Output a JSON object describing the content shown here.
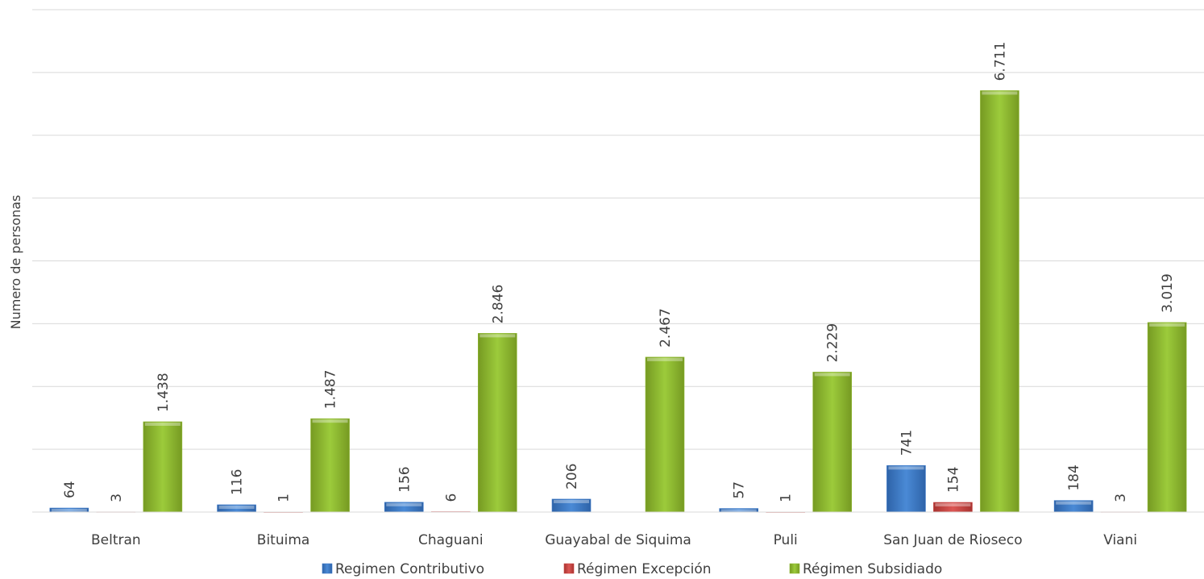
{
  "chart_data": {
    "type": "bar",
    "title": "",
    "xlabel": "",
    "ylabel": "Numero de personas",
    "ylim": [
      0,
      8000
    ],
    "yticks_shown": false,
    "grid": true,
    "legend_position": "bottom",
    "categories": [
      "Beltran",
      "Bituima",
      "Chaguani",
      "Guayabal de Siquima",
      "Puli",
      "San Juan de Rioseco",
      "Viani"
    ],
    "series": [
      {
        "name": "Regimen Contributivo",
        "color": "#3b79c8",
        "values": [
          64,
          116,
          156,
          206,
          57,
          741,
          184
        ],
        "labels": [
          "64",
          "116",
          "156",
          "206",
          "57",
          "741",
          "184"
        ]
      },
      {
        "name": "Régimen Excepción",
        "color": "#c9403d",
        "values": [
          3,
          1,
          6,
          0,
          1,
          154,
          3
        ],
        "labels": [
          "3",
          "1",
          "6",
          "",
          "1",
          "154",
          "3"
        ]
      },
      {
        "name": "Régimen Subsidiado",
        "color": "#8fb832",
        "values": [
          1438,
          1487,
          2846,
          2467,
          2229,
          6711,
          3019
        ],
        "labels": [
          "1.438",
          "1.487",
          "2.846",
          "2.467",
          "2.229",
          "6.711",
          "3.019"
        ]
      }
    ]
  }
}
